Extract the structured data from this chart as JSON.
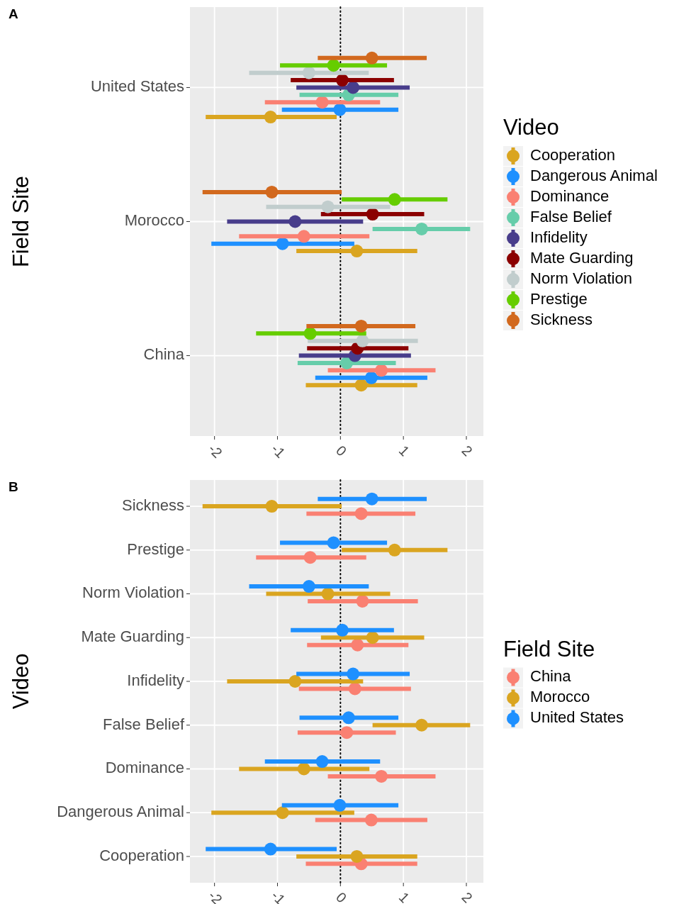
{
  "chart_data": [
    {
      "type": "scatter",
      "title": "A",
      "orientation": "horizontal",
      "ylabel": "Field Site",
      "legend_title": "Video",
      "legend": "right",
      "grid": true,
      "marker": "circle",
      "categories": [
        "United States",
        "Morocco",
        "China"
      ],
      "xlim": [
        -2.39,
        2.27
      ],
      "xticks": [
        -2,
        -1,
        0,
        1,
        2
      ],
      "ref_lines": [
        {
          "axis": "x",
          "value": 0,
          "line_style": "dotted",
          "color": "#000000"
        }
      ],
      "series": [
        {
          "name": "Cooperation",
          "color": "#daa520",
          "values": [
            -1.11,
            0.26,
            0.33
          ],
          "errors": [
            [
              -2.14,
              -0.06
            ],
            [
              -0.7,
              1.22
            ],
            [
              -0.55,
              1.22
            ]
          ]
        },
        {
          "name": "Dangerous Animal",
          "color": "#1e90ff",
          "values": [
            -0.01,
            -0.92,
            0.49
          ],
          "errors": [
            [
              -0.93,
              0.92
            ],
            [
              -2.05,
              0.22
            ],
            [
              -0.4,
              1.38
            ]
          ]
        },
        {
          "name": "Dominance",
          "color": "#fa8072",
          "values": [
            -0.29,
            -0.58,
            0.65
          ],
          "errors": [
            [
              -1.2,
              0.63
            ],
            [
              -1.61,
              0.46
            ],
            [
              -0.2,
              1.51
            ]
          ]
        },
        {
          "name": "False Belief",
          "color": "#66cdaa",
          "values": [
            0.13,
            1.29,
            0.1
          ],
          "errors": [
            [
              -0.65,
              0.92
            ],
            [
              0.51,
              2.06
            ],
            [
              -0.68,
              0.88
            ]
          ]
        },
        {
          "name": "Infidelity",
          "color": "#483d8b",
          "values": [
            0.2,
            -0.72,
            0.23
          ],
          "errors": [
            [
              -0.7,
              1.1
            ],
            [
              -1.8,
              0.36
            ],
            [
              -0.66,
              1.12
            ]
          ]
        },
        {
          "name": "Mate Guarding",
          "color": "#8b0000",
          "values": [
            0.03,
            0.51,
            0.27
          ],
          "errors": [
            [
              -0.79,
              0.85
            ],
            [
              -0.31,
              1.33
            ],
            [
              -0.53,
              1.08
            ]
          ]
        },
        {
          "name": "Norm Violation",
          "color": "#c1cdcd",
          "values": [
            -0.5,
            -0.2,
            0.35
          ],
          "errors": [
            [
              -1.45,
              0.45
            ],
            [
              -1.18,
              0.79
            ],
            [
              -0.52,
              1.23
            ]
          ]
        },
        {
          "name": "Prestige",
          "color": "#66cd00",
          "values": [
            -0.11,
            0.86,
            -0.48
          ],
          "errors": [
            [
              -0.96,
              0.74
            ],
            [
              0.02,
              1.7
            ],
            [
              -1.34,
              0.41
            ]
          ]
        },
        {
          "name": "Sickness",
          "color": "#d2691e",
          "values": [
            0.5,
            -1.09,
            0.33
          ],
          "errors": [
            [
              -0.36,
              1.37
            ],
            [
              -2.19,
              0.02
            ],
            [
              -0.54,
              1.19
            ]
          ]
        }
      ]
    },
    {
      "type": "scatter",
      "title": "B",
      "orientation": "horizontal",
      "ylabel": "Video",
      "legend_title": "Field Site",
      "legend": "right",
      "grid": true,
      "marker": "circle",
      "categories": [
        "Sickness",
        "Prestige",
        "Norm Violation",
        "Mate Guarding",
        "Infidelity",
        "False Belief",
        "Dominance",
        "Dangerous Animal",
        "Cooperation"
      ],
      "xlim": [
        -2.39,
        2.27
      ],
      "xticks": [
        -2,
        -1,
        0,
        1,
        2
      ],
      "ref_lines": [
        {
          "axis": "x",
          "value": 0,
          "line_style": "dotted",
          "color": "#000000"
        }
      ],
      "series": [
        {
          "name": "China",
          "color": "#fa8072",
          "values": [
            0.33,
            -0.48,
            0.35,
            0.27,
            0.23,
            0.1,
            0.65,
            0.49,
            0.33
          ],
          "errors": [
            [
              -0.54,
              1.19
            ],
            [
              -1.34,
              0.41
            ],
            [
              -0.52,
              1.23
            ],
            [
              -0.53,
              1.08
            ],
            [
              -0.66,
              1.12
            ],
            [
              -0.68,
              0.88
            ],
            [
              -0.2,
              1.51
            ],
            [
              -0.4,
              1.38
            ],
            [
              -0.55,
              1.22
            ]
          ]
        },
        {
          "name": "Morocco",
          "color": "#daa520",
          "values": [
            -1.09,
            0.86,
            -0.2,
            0.51,
            -0.72,
            1.29,
            -0.58,
            -0.92,
            0.26
          ],
          "errors": [
            [
              -2.19,
              0.02
            ],
            [
              0.02,
              1.7
            ],
            [
              -1.18,
              0.79
            ],
            [
              -0.31,
              1.33
            ],
            [
              -1.8,
              0.36
            ],
            [
              0.51,
              2.06
            ],
            [
              -1.61,
              0.46
            ],
            [
              -2.05,
              0.22
            ],
            [
              -0.7,
              1.22
            ]
          ]
        },
        {
          "name": "United States",
          "color": "#1e90ff",
          "values": [
            0.5,
            -0.11,
            -0.5,
            0.03,
            0.2,
            0.13,
            -0.29,
            -0.01,
            -1.11
          ],
          "errors": [
            [
              -0.36,
              1.37
            ],
            [
              -0.96,
              0.74
            ],
            [
              -1.45,
              0.45
            ],
            [
              -0.79,
              0.85
            ],
            [
              -0.7,
              1.1
            ],
            [
              -0.65,
              0.92
            ],
            [
              -1.2,
              0.63
            ],
            [
              -0.93,
              0.92
            ],
            [
              -2.14,
              -0.06
            ]
          ]
        }
      ]
    }
  ]
}
